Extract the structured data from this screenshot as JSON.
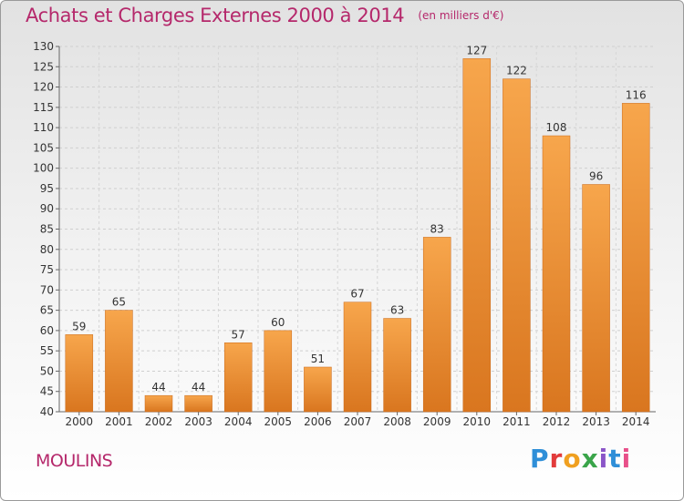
{
  "header": {
    "title": "Achats et Charges Externes 2000 à 2014",
    "subtitle": "(en milliers d'€)"
  },
  "footer": {
    "town": "MOULINS",
    "logo": [
      "P",
      "r",
      "o",
      "x",
      "i",
      "t",
      "i"
    ]
  },
  "chart_data": {
    "type": "bar",
    "title": "Achats et Charges Externes 2000 à 2014",
    "subtitle": "(en milliers d'€)",
    "categories": [
      "2000",
      "2001",
      "2002",
      "2003",
      "2004",
      "2005",
      "2006",
      "2007",
      "2008",
      "2009",
      "2010",
      "2011",
      "2012",
      "2013",
      "2014"
    ],
    "values": [
      59,
      65,
      44,
      44,
      57,
      60,
      51,
      67,
      63,
      83,
      127,
      122,
      108,
      96,
      116
    ],
    "ylim": [
      40,
      130
    ],
    "yticks": [
      40,
      45,
      50,
      55,
      60,
      65,
      70,
      75,
      80,
      85,
      90,
      95,
      100,
      105,
      110,
      115,
      120,
      125,
      130
    ],
    "grid": true,
    "bar_color": "#f0993c",
    "bar_color_dark": "#d9761f",
    "title_color": "#b5286b"
  }
}
